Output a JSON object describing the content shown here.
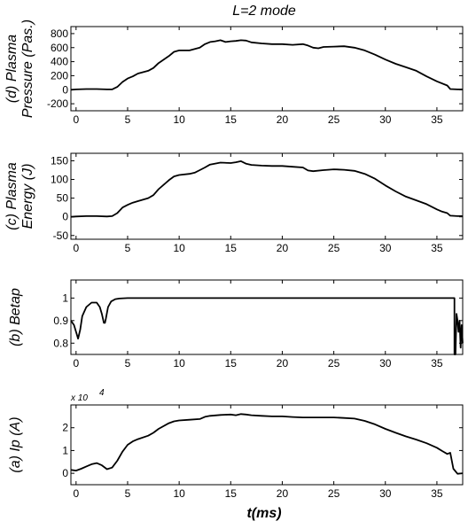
{
  "figure": {
    "title": "L=2 mode",
    "xlabel": "t(ms)"
  },
  "chart_data": [
    {
      "type": "line",
      "panel": "d",
      "ylabel_lines": [
        "(d) Plasma",
        "Pressure (Pas.)"
      ],
      "xlim": [
        -0.5,
        37.5
      ],
      "ylim": [
        -300,
        900
      ],
      "xticks": [
        0,
        5,
        10,
        15,
        20,
        25,
        30,
        35
      ],
      "yticks": [
        -200,
        0,
        200,
        400,
        600,
        800
      ],
      "grid": false,
      "series": [
        {
          "x": [
            -0.5,
            0,
            1,
            2,
            3,
            3.5,
            4,
            4.5,
            5,
            5.5,
            6,
            7,
            7.5,
            8,
            9,
            9.5,
            10,
            10.5,
            11,
            12,
            12.5,
            13,
            13.5,
            14,
            14.5,
            15,
            15.5,
            16,
            16.5,
            17,
            18,
            19,
            20,
            21,
            22,
            22.5,
            23,
            23.5,
            24,
            25,
            26,
            27,
            28,
            29,
            30,
            31,
            32,
            33,
            34,
            35,
            36,
            36.3,
            37,
            37.5
          ],
          "y": [
            0,
            5,
            10,
            10,
            5,
            5,
            40,
            110,
            160,
            190,
            230,
            270,
            310,
            380,
            480,
            540,
            560,
            560,
            560,
            600,
            650,
            680,
            690,
            705,
            680,
            690,
            695,
            705,
            700,
            675,
            660,
            650,
            650,
            640,
            650,
            630,
            600,
            590,
            610,
            615,
            620,
            600,
            560,
            500,
            430,
            370,
            320,
            270,
            190,
            120,
            60,
            10,
            5,
            5
          ]
        }
      ]
    },
    {
      "type": "line",
      "panel": "c",
      "ylabel_lines": [
        "(c) Plasma",
        "Energy (J)"
      ],
      "xlim": [
        -0.5,
        37.5
      ],
      "ylim": [
        -60,
        170
      ],
      "xticks": [
        0,
        5,
        10,
        15,
        20,
        25,
        30,
        35
      ],
      "yticks": [
        -50,
        0,
        50,
        100,
        150
      ],
      "grid": false,
      "series": [
        {
          "x": [
            -0.5,
            0,
            1,
            2,
            3,
            3.5,
            4,
            4.5,
            5,
            5.5,
            6,
            7,
            7.5,
            8,
            9,
            9.5,
            10,
            11,
            11.5,
            12,
            12.5,
            13,
            14,
            15,
            15.5,
            16,
            16.5,
            17,
            18,
            19,
            20,
            21,
            22,
            22.5,
            23,
            24,
            25,
            26,
            27,
            28,
            29,
            30,
            31,
            32,
            33,
            34,
            35,
            35.5,
            36,
            36.3,
            37,
            37.5
          ],
          "y": [
            0,
            1,
            2,
            2,
            1,
            2,
            10,
            25,
            32,
            38,
            42,
            50,
            58,
            74,
            98,
            108,
            112,
            115,
            118,
            125,
            132,
            140,
            145,
            144,
            146,
            149,
            142,
            139,
            137,
            136,
            136,
            134,
            132,
            124,
            122,
            125,
            127,
            126,
            123,
            115,
            102,
            84,
            68,
            54,
            44,
            34,
            20,
            14,
            10,
            3,
            2,
            2
          ]
        }
      ]
    },
    {
      "type": "line",
      "panel": "b",
      "ylabel_lines": [
        "(b) Betap"
      ],
      "xlim": [
        -0.5,
        37.5
      ],
      "ylim": [
        0.75,
        1.08
      ],
      "xticks": [
        0,
        5,
        10,
        15,
        20,
        25,
        30,
        35
      ],
      "yticks": [
        0.8,
        0.9,
        1
      ],
      "grid": false,
      "series": [
        {
          "x": [
            -0.5,
            -0.2,
            0,
            0.2,
            0.4,
            0.6,
            1.0,
            1.5,
            2.0,
            2.3,
            2.5,
            2.7,
            2.8,
            2.9,
            3.1,
            3.4,
            3.8,
            4.2,
            4.6,
            5.0,
            10,
            20,
            30,
            36.5,
            36.7,
            36.7,
            36.8,
            36.9,
            37.0,
            37.1,
            37.2,
            37.3,
            37.4,
            37.5
          ],
          "y": [
            0.9,
            0.88,
            0.85,
            0.82,
            0.86,
            0.92,
            0.96,
            0.98,
            0.98,
            0.96,
            0.93,
            0.89,
            0.89,
            0.91,
            0.96,
            0.985,
            0.995,
            0.998,
            0.999,
            1.0,
            1.0,
            1.0,
            1.0,
            1.0,
            1.0,
            0.75,
            0.75,
            0.93,
            0.9,
            0.85,
            0.9,
            0.78,
            0.88,
            0.8
          ]
        }
      ]
    },
    {
      "type": "line",
      "panel": "a",
      "ylabel_lines": [
        "(a) Ip (A)"
      ],
      "exponent_label": "x 10",
      "exponent_power": "4",
      "xlim": [
        -0.5,
        37.5
      ],
      "ylim": [
        -0.5,
        3.0
      ],
      "xticks": [
        0,
        5,
        10,
        15,
        20,
        25,
        30,
        35
      ],
      "yticks": [
        0,
        1,
        2
      ],
      "grid": false,
      "series": [
        {
          "x": [
            -0.5,
            0,
            0.5,
            1,
            1.5,
            2,
            2.5,
            3,
            3.5,
            4,
            4.5,
            5,
            5.5,
            6,
            7,
            7.5,
            8,
            9,
            9.5,
            10,
            11,
            12,
            12.5,
            13,
            14,
            15,
            15.5,
            16,
            16.5,
            17,
            18,
            19,
            20,
            21,
            22,
            23,
            24,
            25,
            26,
            27,
            28,
            29,
            30,
            31,
            32,
            33,
            34,
            35,
            35.5,
            36,
            36.3,
            36.6,
            37,
            37.5
          ],
          "y": [
            0.15,
            0.12,
            0.2,
            0.3,
            0.4,
            0.45,
            0.35,
            0.18,
            0.25,
            0.55,
            0.95,
            1.25,
            1.4,
            1.5,
            1.65,
            1.78,
            1.95,
            2.2,
            2.28,
            2.32,
            2.35,
            2.38,
            2.48,
            2.52,
            2.56,
            2.58,
            2.55,
            2.6,
            2.58,
            2.55,
            2.52,
            2.5,
            2.5,
            2.47,
            2.45,
            2.45,
            2.45,
            2.45,
            2.43,
            2.4,
            2.3,
            2.15,
            1.95,
            1.78,
            1.62,
            1.48,
            1.32,
            1.12,
            0.98,
            0.85,
            0.9,
            0.2,
            -0.02,
            0.0
          ]
        }
      ]
    }
  ]
}
